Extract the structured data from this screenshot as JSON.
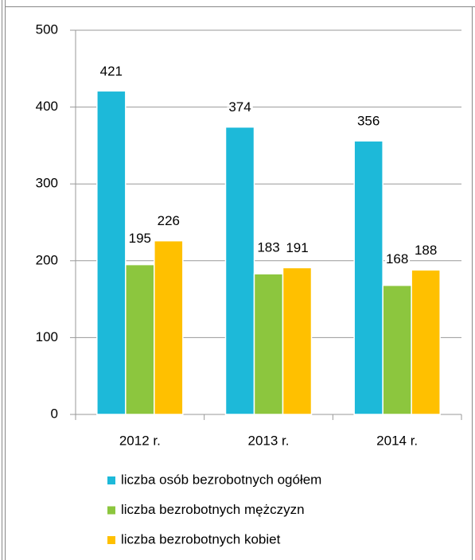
{
  "chart_data": {
    "type": "bar",
    "categories": [
      "2012 r.",
      "2013 r.",
      "2014 r."
    ],
    "series": [
      {
        "name": "liczba osób bezrobotnych ogółem",
        "color": "#1db9d9",
        "values": [
          421,
          374,
          356
        ]
      },
      {
        "name": "liczba bezrobotnych mężczyzn",
        "color": "#8cc63e",
        "values": [
          195,
          183,
          168
        ]
      },
      {
        "name": "liczba bezrobotnych kobiet",
        "color": "#ffc000",
        "values": [
          226,
          191,
          188
        ]
      }
    ],
    "ylim": [
      0,
      500
    ],
    "yticks": [
      0,
      100,
      200,
      300,
      400,
      500
    ],
    "grid": true
  }
}
